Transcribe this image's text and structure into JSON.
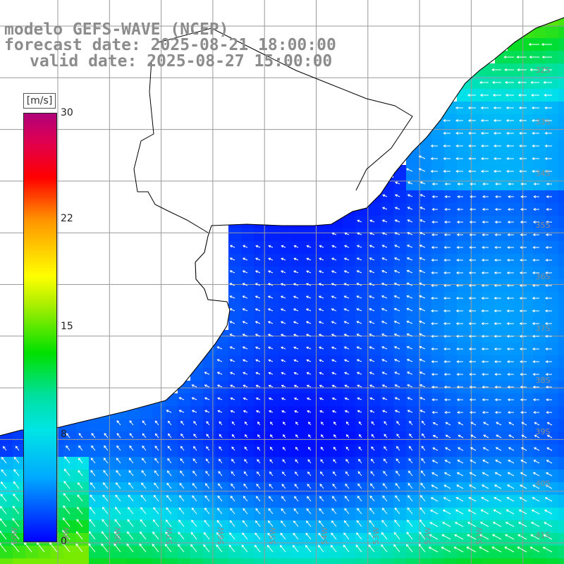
{
  "title": {
    "line1": "modelo GEFS-WAVE (NCEP)",
    "line2": "forecast date: 2025-08-21 18:00:00",
    "line3": "valid date: 2025-08-27 15:00:00"
  },
  "colorbar": {
    "unit": "[m/s]",
    "labels": [
      "30",
      "22",
      "15",
      "8",
      "0"
    ],
    "colors": [
      "#0000ff",
      "#00aaff",
      "#00e5e5",
      "#00e000",
      "#ffff00",
      "#ff9600",
      "#ff0000",
      "#b0007a"
    ]
  },
  "graticule": {
    "lat_labels": [
      "32S",
      "33S",
      "34S",
      "35S",
      "36S",
      "37S",
      "38S",
      "39S",
      "40S",
      "41S"
    ],
    "lon_labels": [
      "60W",
      "59W",
      "58W",
      "57W",
      "56W",
      "55W",
      "54W",
      "53W",
      "52W",
      "51W"
    ]
  },
  "palette": {
    "land": "#ffffff",
    "coast": "#000000",
    "grid": "#999999",
    "arrow": "#ffffff"
  }
}
